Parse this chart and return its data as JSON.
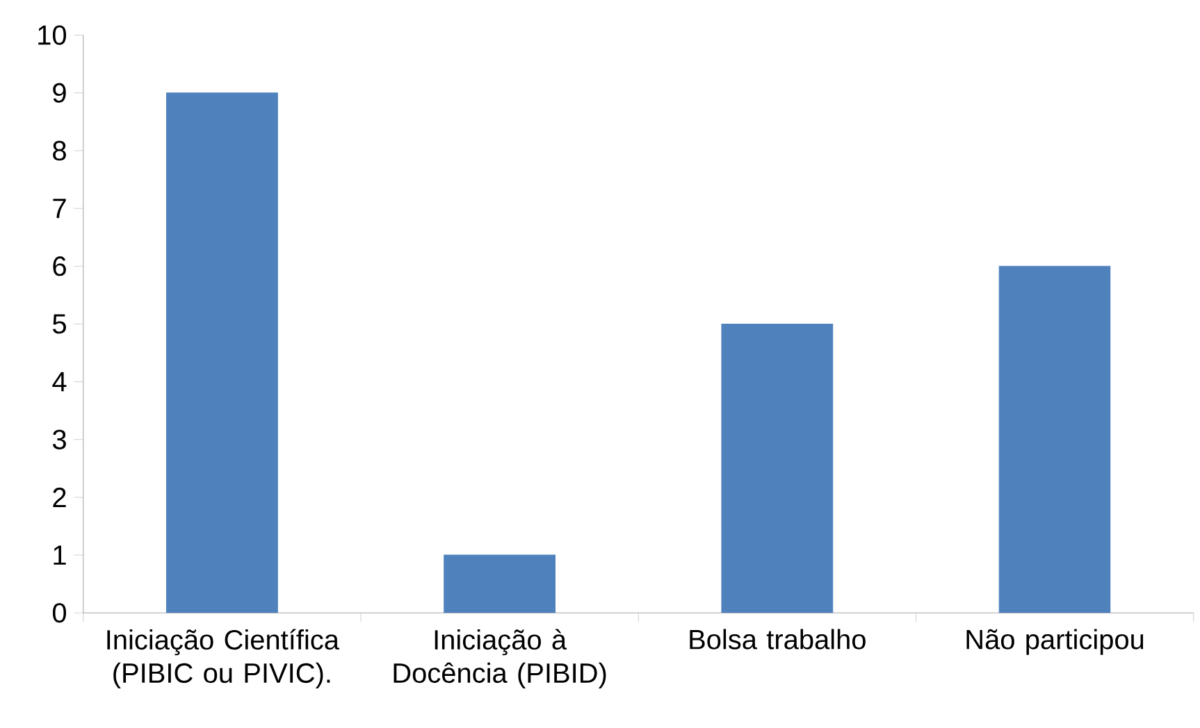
{
  "chart_data": {
    "type": "bar",
    "categories": [
      "Iniciação Científica (PIBIC ou PIVIC).",
      "Iniciação à Docência (PIBID)",
      "Bolsa trabalho",
      "Não participou"
    ],
    "values": [
      9,
      1,
      5,
      6
    ],
    "color": "#4f81bd",
    "ylim": [
      0,
      10
    ],
    "yticks": [
      0,
      1,
      2,
      3,
      4,
      5,
      6,
      7,
      8,
      9,
      10
    ],
    "grid": false
  }
}
